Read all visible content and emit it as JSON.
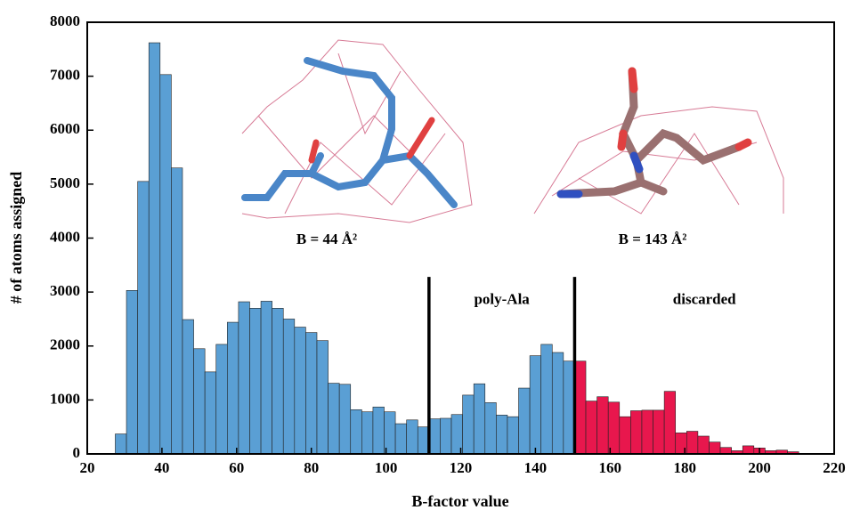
{
  "chart_data": {
    "type": "histogram",
    "x_label": "B-factor value",
    "y_label": "# of atoms assigned",
    "xlim": [
      20,
      220
    ],
    "ylim": [
      0,
      8000
    ],
    "xticks": [
      20,
      40,
      60,
      80,
      100,
      120,
      140,
      160,
      180,
      200,
      220
    ],
    "yticks": [
      0,
      1000,
      2000,
      3000,
      4000,
      5000,
      6000,
      7000,
      8000
    ],
    "series": [
      {
        "color": "#5a9fd4",
        "bins": [
          27.5,
          30.5,
          33.5,
          36.5,
          39.5,
          42.5,
          45.5,
          48.5,
          51.5,
          54.5,
          57.5,
          60.5,
          63.5,
          66.5,
          69.5,
          72.5,
          75.5,
          78.5,
          81.5,
          84.5,
          87.5,
          90.5,
          93.5,
          96.5,
          99.5,
          102.5,
          105.5,
          108.5,
          111.5,
          114.5,
          117.5,
          120.5,
          123.5,
          126.5,
          129.5,
          132.5,
          135.5,
          138.5,
          141.5,
          144.5,
          147.5,
          150.5
        ],
        "values": [
          370,
          3030,
          5050,
          7620,
          7030,
          5300,
          2490,
          1950,
          1520,
          2030,
          2440,
          2820,
          2700,
          2830,
          2700,
          2500,
          2350,
          2250,
          2100,
          1310,
          1290,
          820,
          780,
          870,
          780,
          560,
          630,
          500,
          650,
          660,
          730,
          1090,
          1300,
          950,
          720,
          690,
          1220,
          1820,
          2030,
          1880,
          1720
        ]
      },
      {
        "color": "#e8174d",
        "bins": [
          150.5,
          153.5,
          156.5,
          159.5,
          162.5,
          165.5,
          168.5,
          171.5,
          174.5,
          177.5,
          180.5,
          183.5,
          186.5,
          189.5,
          192.5,
          195.5,
          198.5,
          201.5,
          204.5,
          207.5,
          210.5
        ],
        "values": [
          1720,
          980,
          1060,
          960,
          690,
          800,
          810,
          810,
          1160,
          390,
          420,
          330,
          220,
          120,
          60,
          150,
          110,
          60,
          70,
          40
        ]
      }
    ],
    "thresholds": [
      {
        "value": 111.5,
        "label": "poly-Ala"
      },
      {
        "value": 150.5,
        "label": "discarded"
      }
    ],
    "annotations": [
      "B  = 44 Å²",
      "B  = 143 Å²"
    ]
  }
}
